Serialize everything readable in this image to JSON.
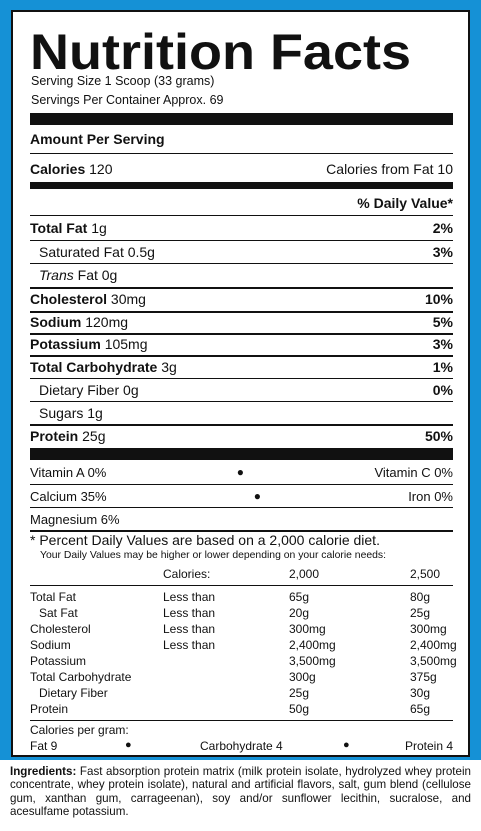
{
  "title": "Nutrition Facts",
  "serving_size": "Serving Size 1 Scoop (33 grams)",
  "servings_per_container": "Servings Per Container Approx. 69",
  "amount_per_serving": "Amount Per Serving",
  "calories_label": "Calories",
  "calories_value": "120",
  "calories_from_fat": "Calories from Fat 10",
  "dv_header": "% Daily Value*",
  "nutrients": [
    {
      "label": "Total Fat",
      "amount": "1g",
      "dv": "2%"
    },
    {
      "label": "Saturated Fat",
      "amount": "0.5g",
      "dv": "3%"
    },
    {
      "label": "Trans",
      "amount": "Fat 0g",
      "dv": ""
    },
    {
      "label": "Cholesterol",
      "amount": "30mg",
      "dv": "10%"
    },
    {
      "label": "Sodium",
      "amount": "120mg",
      "dv": "5%"
    },
    {
      "label": "Potassium",
      "amount": "105mg",
      "dv": "3%"
    },
    {
      "label": "Total Carbohydrate",
      "amount": "3g",
      "dv": "1%"
    },
    {
      "label": "Dietary Fiber",
      "amount": "0g",
      "dv": "0%"
    },
    {
      "label": "Sugars",
      "amount": "1g",
      "dv": ""
    },
    {
      "label": "Protein",
      "amount": "25g",
      "dv": "50%"
    }
  ],
  "vitamins": [
    {
      "left": "Vitamin A 0%",
      "right": "Vitamin C 0%"
    },
    {
      "left": "Calcium 35%",
      "right": "Iron 0%"
    },
    {
      "left": "Magnesium 6%",
      "right": ""
    }
  ],
  "bullet": "●",
  "footnote": "* Percent Daily Values are based on a 2,000 calorie diet.",
  "footnote_small": "Your Daily Values may be higher or lower depending on your calorie needs:",
  "table_header": {
    "calories": "Calories:",
    "c2000": "2,000",
    "c2500": "2,500"
  },
  "table_rows": [
    {
      "label": "Total Fat",
      "cond": "Less than",
      "v1": "65g",
      "v2": "80g"
    },
    {
      "label": "Sat Fat",
      "cond": "Less than",
      "v1": "20g",
      "v2": "25g"
    },
    {
      "label": "Cholesterol",
      "cond": "Less than",
      "v1": "300mg",
      "v2": "300mg"
    },
    {
      "label": "Sodium",
      "cond": "Less than",
      "v1": "2,400mg",
      "v2": "2,400mg"
    },
    {
      "label": "Potassium",
      "cond": "",
      "v1": "3,500mg",
      "v2": "3,500mg"
    },
    {
      "label": "Total Carbohydrate",
      "cond": "",
      "v1": "300g",
      "v2": "375g"
    },
    {
      "label": "Dietary Fiber",
      "cond": "",
      "v1": "25g",
      "v2": "30g"
    },
    {
      "label": "Protein",
      "cond": "",
      "v1": "50g",
      "v2": "65g"
    }
  ],
  "cal_per_gram": "Calories per gram:",
  "per_gram": {
    "fat": "Fat 9",
    "carb": "Carbohydrate 4",
    "protein": "Protein 4"
  },
  "ingredients_label": "Ingredients:",
  "ingredients_text": " Fast absorption protein matrix (milk protein isolate, hydrolyzed whey protein concentrate, whey protein isolate), natural and artificial flavors, salt, gum blend (cellulose gum, xanthan gum, carrageenan), soy and/or sunflower lecithin, sucralose, and acesulfame potassium.",
  "colors": {
    "background": "#1591d6",
    "ink": "#111111"
  }
}
